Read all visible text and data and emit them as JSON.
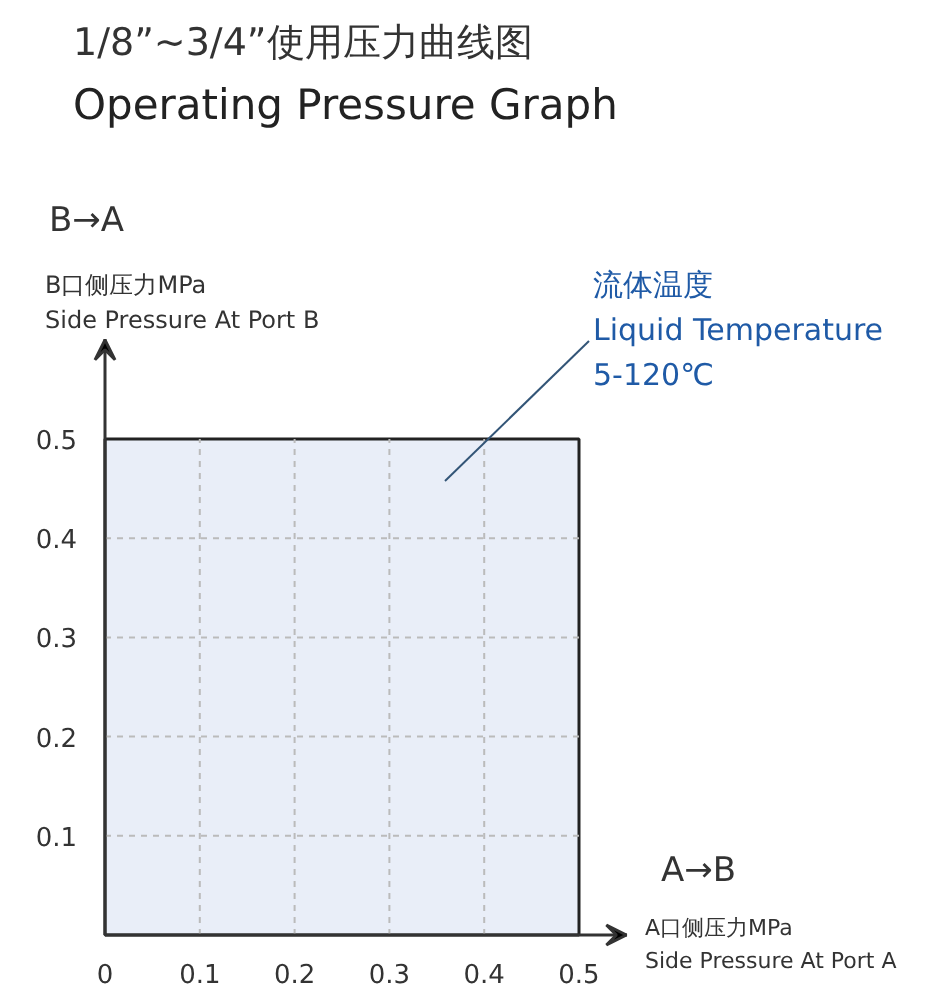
{
  "chart_data": {
    "type": "area",
    "title": "1/8”~3/4”使用压力曲线图",
    "subtitle": "Operating Pressure Graph",
    "xlabel": "A口侧压力MPa\nSide Pressure At Port A",
    "ylabel": "B口侧压力MPa\nSide Pressure At Port B",
    "annotations": [
      "A→B",
      "B→A",
      "流体温度\nLiquid Temperature\n5-120℃"
    ],
    "x": [
      0,
      0.5
    ],
    "series": [
      {
        "color": "#e9eef8",
        "values": [
          0.5,
          0.5
        ]
      }
    ],
    "xlim": [
      0,
      0.55
    ],
    "ylim": [
      0,
      0.6
    ],
    "xticks": [
      0,
      0.1,
      0.2,
      0.3,
      0.4,
      0.5
    ],
    "yticks": [
      0.1,
      0.2,
      0.3,
      0.4,
      0.5
    ],
    "grid": true
  }
}
